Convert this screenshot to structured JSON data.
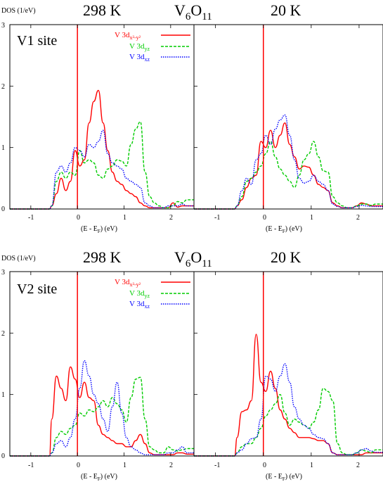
{
  "figure": {
    "ylabel": "DOS (1/eV)",
    "compound": "V6O11",
    "compound_parts": [
      "V",
      "6",
      "O",
      "11"
    ],
    "xlabel_parts": [
      "(E - E",
      "F",
      ") (eV)"
    ],
    "legend": [
      {
        "prefix": "V 3d",
        "sub": "x²-y²"
      },
      {
        "prefix": "V 3d",
        "sub": "yz"
      },
      {
        "prefix": "V 3d",
        "sub": "xz"
      }
    ],
    "x_ticks": [
      "-1",
      "0",
      "1",
      "2"
    ],
    "y_ticks": [
      "0",
      "1",
      "2",
      "3"
    ]
  },
  "colors": {
    "x2y2": "#ff0000",
    "yz": "#00cc00",
    "xz": "#0000ff",
    "fermi": "#ff0000"
  },
  "chart_data": [
    {
      "type": "line",
      "row": "V1 site",
      "temperature": "298 K",
      "xlim": [
        -1.45,
        2.5
      ],
      "ylim": [
        0,
        3
      ],
      "fermi_line_x": 0,
      "x": [
        -1.45,
        -0.6,
        -0.55,
        -0.45,
        -0.35,
        -0.25,
        -0.15,
        -0.05,
        0.05,
        0.15,
        0.25,
        0.35,
        0.45,
        0.55,
        0.65,
        0.75,
        0.85,
        0.95,
        1.05,
        1.15,
        1.25,
        1.35,
        1.45,
        1.55,
        1.65,
        1.75,
        1.85,
        1.95,
        2.05,
        2.15,
        2.25,
        2.35,
        2.5
      ],
      "series": [
        {
          "name": "V 3dx²-y²",
          "key": "x2y2",
          "style": "solid",
          "values": [
            0,
            0,
            0.05,
            0.25,
            0.5,
            0.3,
            0.45,
            0.95,
            0.7,
            0.8,
            1.4,
            1.75,
            1.93,
            1.4,
            0.95,
            0.6,
            0.45,
            0.4,
            0.3,
            0.25,
            0.2,
            0.1,
            0.05,
            0.02,
            0.02,
            0.02,
            0.02,
            0.02,
            0.1,
            0.03,
            0.05,
            0.05,
            0.05
          ]
        },
        {
          "name": "V 3dyz",
          "key": "yz",
          "style": "dashed",
          "values": [
            0,
            0,
            0.05,
            0.45,
            0.6,
            0.5,
            0.6,
            0.55,
            0.95,
            0.75,
            0.8,
            0.75,
            0.55,
            0.5,
            0.65,
            0.7,
            0.8,
            0.78,
            0.7,
            1.05,
            1.3,
            1.42,
            0.6,
            0.2,
            0.1,
            0.05,
            0.02,
            0.02,
            0.06,
            0.12,
            0.1,
            0.15,
            0.15
          ]
        },
        {
          "name": "V 3dxz",
          "key": "xz",
          "style": "dotted",
          "values": [
            0,
            0,
            0.05,
            0.6,
            0.7,
            0.6,
            0.75,
            1.0,
            0.95,
            0.85,
            1.05,
            1.0,
            1.1,
            1.28,
            0.9,
            0.75,
            0.7,
            0.65,
            0.5,
            0.45,
            0.4,
            0.35,
            0.1,
            0.05,
            0.02,
            0.02,
            0.02,
            0.05,
            0.05,
            0.05,
            0.08,
            0.05,
            0.05
          ]
        }
      ]
    },
    {
      "type": "line",
      "row": "V1 site",
      "temperature": "20 K",
      "xlim": [
        -1.45,
        2.5
      ],
      "ylim": [
        0,
        3
      ],
      "fermi_line_x": 0,
      "x": [
        -1.45,
        -0.6,
        -0.55,
        -0.45,
        -0.35,
        -0.25,
        -0.15,
        -0.05,
        0.05,
        0.15,
        0.25,
        0.35,
        0.45,
        0.55,
        0.65,
        0.75,
        0.85,
        0.95,
        1.05,
        1.15,
        1.25,
        1.35,
        1.45,
        1.55,
        1.65,
        1.75,
        1.85,
        1.95,
        2.05,
        2.15,
        2.25,
        2.35,
        2.5
      ],
      "series": [
        {
          "name": "V 3dx²-y²",
          "key": "x2y2",
          "style": "solid",
          "values": [
            0,
            0,
            0.05,
            0.15,
            0.35,
            0.5,
            0.55,
            1.1,
            1.0,
            1.28,
            1.0,
            1.2,
            1.4,
            1.05,
            0.85,
            0.65,
            0.7,
            0.68,
            0.55,
            0.4,
            0.35,
            0.3,
            0.1,
            0.05,
            0.02,
            0.02,
            0.02,
            0.05,
            0.1,
            0.08,
            0.05,
            0.05,
            0.05
          ]
        },
        {
          "name": "V 3dyz",
          "key": "yz",
          "style": "dashed",
          "values": [
            0,
            0,
            0.05,
            0.2,
            0.45,
            0.5,
            0.6,
            0.7,
            0.9,
            1.1,
            0.85,
            0.65,
            0.55,
            0.45,
            0.35,
            0.55,
            0.8,
            0.9,
            1.1,
            0.85,
            0.62,
            0.6,
            0.2,
            0.1,
            0.05,
            0.02,
            0.02,
            0.05,
            0.08,
            0.08,
            0.06,
            0.08,
            0.08
          ]
        },
        {
          "name": "V 3dxz",
          "key": "xz",
          "style": "dotted",
          "values": [
            0,
            0,
            0.05,
            0.3,
            0.5,
            0.4,
            0.8,
            0.9,
            1.2,
            1.05,
            1.3,
            1.45,
            1.53,
            1.2,
            0.8,
            0.5,
            0.42,
            0.45,
            0.55,
            0.45,
            0.4,
            0.3,
            0.08,
            0.04,
            0.02,
            0.02,
            0.02,
            0.04,
            0.06,
            0.05,
            0.04,
            0.04,
            0.04
          ]
        }
      ]
    },
    {
      "type": "line",
      "row": "V2 site",
      "temperature": "298 K",
      "xlim": [
        -1.45,
        2.5
      ],
      "ylim": [
        0,
        3
      ],
      "fermi_line_x": 0,
      "x": [
        -1.45,
        -0.6,
        -0.55,
        -0.45,
        -0.35,
        -0.25,
        -0.15,
        -0.05,
        0.05,
        0.15,
        0.25,
        0.35,
        0.45,
        0.55,
        0.65,
        0.75,
        0.85,
        0.95,
        1.05,
        1.15,
        1.25,
        1.35,
        1.45,
        1.55,
        1.65,
        1.75,
        1.85,
        1.95,
        2.05,
        2.15,
        2.25,
        2.35,
        2.5
      ],
      "series": [
        {
          "name": "V 3dx²-y²",
          "key": "x2y2",
          "style": "solid",
          "values": [
            0,
            0,
            0.6,
            1.3,
            1.1,
            0.9,
            1.45,
            1.25,
            0.95,
            1.2,
            0.95,
            0.9,
            0.5,
            0.35,
            0.3,
            0.25,
            0.2,
            0.2,
            0.15,
            0.15,
            0.25,
            0.35,
            0.2,
            0.05,
            0.02,
            0.02,
            0.02,
            0.02,
            0.02,
            0.05,
            0.05,
            0.03,
            0.03
          ]
        },
        {
          "name": "V 3dyz",
          "key": "yz",
          "style": "dashed",
          "values": [
            0,
            0,
            0.05,
            0.3,
            0.4,
            0.35,
            0.45,
            0.5,
            0.7,
            0.65,
            0.75,
            0.72,
            0.8,
            0.9,
            0.8,
            0.95,
            0.85,
            0.75,
            0.55,
            0.95,
            1.25,
            1.28,
            0.6,
            0.15,
            0.1,
            0.05,
            0.05,
            0.15,
            0.1,
            0.08,
            0.1,
            0.12,
            0.12
          ]
        },
        {
          "name": "V 3dxz",
          "key": "xz",
          "style": "dotted",
          "values": [
            0,
            0,
            0.05,
            0.2,
            0.25,
            0.15,
            0.3,
            0.6,
            1.1,
            1.55,
            1.3,
            1.0,
            0.85,
            0.6,
            0.4,
            0.8,
            1.2,
            0.7,
            0.3,
            0.15,
            0.1,
            0.05,
            0.02,
            0.02,
            0.02,
            0.02,
            0.02,
            0.05,
            0.05,
            0.1,
            0.15,
            0.05,
            0.05
          ]
        }
      ]
    },
    {
      "type": "line",
      "row": "V2 site",
      "temperature": "20 K",
      "xlim": [
        -1.45,
        2.5
      ],
      "ylim": [
        0,
        3
      ],
      "fermi_line_x": 0,
      "x": [
        -1.45,
        -0.6,
        -0.55,
        -0.45,
        -0.35,
        -0.25,
        -0.15,
        -0.05,
        0.05,
        0.15,
        0.25,
        0.35,
        0.45,
        0.55,
        0.65,
        0.75,
        0.85,
        0.95,
        1.05,
        1.15,
        1.25,
        1.35,
        1.45,
        1.55,
        1.65,
        1.75,
        1.85,
        1.95,
        2.05,
        2.15,
        2.25,
        2.35,
        2.5
      ],
      "series": [
        {
          "name": "V 3dx²-y²",
          "key": "x2y2",
          "style": "solid",
          "values": [
            0,
            0,
            0.3,
            0.72,
            0.75,
            0.9,
            1.98,
            1.2,
            1.05,
            1.38,
            1.1,
            0.75,
            0.6,
            0.45,
            0.38,
            0.3,
            0.3,
            0.3,
            0.28,
            0.25,
            0.25,
            0.2,
            0.05,
            0.02,
            0.02,
            0.02,
            0.02,
            0.02,
            0.02,
            0.05,
            0.05,
            0.05,
            0.05
          ]
        },
        {
          "name": "V 3dyz",
          "key": "yz",
          "style": "dashed",
          "values": [
            0,
            0,
            0.05,
            0.15,
            0.2,
            0.2,
            0.3,
            0.45,
            0.65,
            0.75,
            0.85,
            1.0,
            0.7,
            0.5,
            0.6,
            0.55,
            0.5,
            0.45,
            0.55,
            0.75,
            1.1,
            1.05,
            0.9,
            0.2,
            0.05,
            0.02,
            0.02,
            0.05,
            0.1,
            0.08,
            0.05,
            0.1,
            0.1
          ]
        },
        {
          "name": "V 3dxz",
          "key": "xz",
          "style": "dotted",
          "values": [
            0,
            0,
            0.05,
            0.1,
            0.2,
            0.28,
            0.3,
            0.6,
            1.3,
            1.25,
            1.05,
            1.3,
            1.5,
            1.2,
            0.8,
            0.6,
            0.5,
            0.45,
            0.35,
            0.3,
            0.28,
            0.2,
            0.05,
            0.02,
            0.02,
            0.02,
            0.02,
            0.05,
            0.1,
            0.12,
            0.08,
            0.06,
            0.06
          ]
        }
      ]
    }
  ],
  "panels_text": [
    {
      "site_label": "V1 site",
      "temp_label": "298 K"
    },
    {
      "temp_label": "20 K"
    },
    {
      "site_label": "V2 site",
      "temp_label": "298 K"
    },
    {
      "temp_label": "20 K"
    }
  ]
}
